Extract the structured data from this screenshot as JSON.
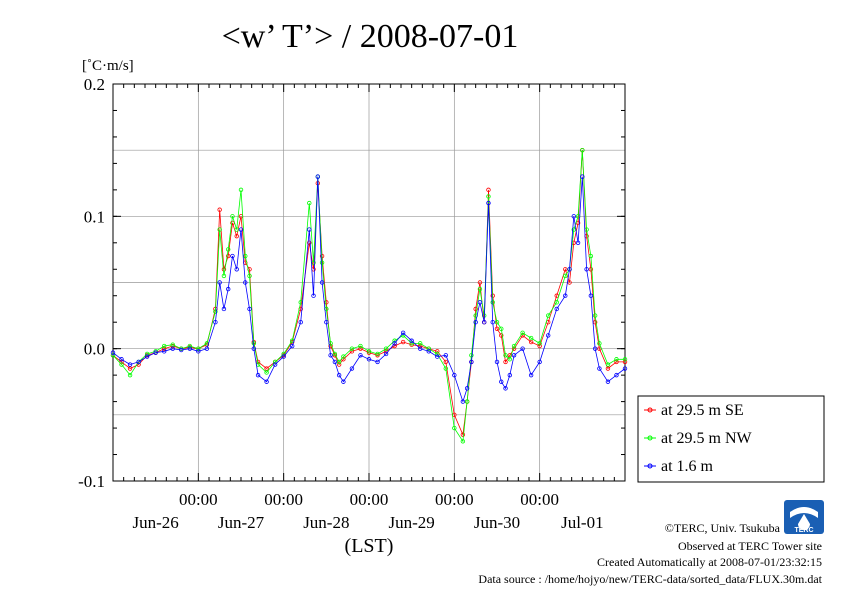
{
  "chart_data": {
    "type": "line",
    "title": "<w’ T’> / 2008-07-01",
    "ylabel": "[˚C·m/s]",
    "xlabel": "(LST)",
    "ylim": [
      -0.1,
      0.2
    ],
    "yticks": [
      -0.1,
      0.0,
      0.1,
      0.2
    ],
    "ytick_labels": [
      "-0.1",
      "0.0",
      "0.1",
      "0.2"
    ],
    "x_unit": "days since Jun-25 12:00",
    "xlim": [
      0,
      6
    ],
    "xticks": [
      0.5,
      1.5,
      2.5,
      3.5,
      4.5,
      5.5
    ],
    "xtick_time_labels": [
      "00:00",
      "00:00",
      "00:00",
      "00:00",
      "00:00"
    ],
    "xtick_time_positions": [
      1.0,
      2.0,
      3.0,
      4.0,
      5.0
    ],
    "xtick_date_labels": [
      "Jun-26",
      "Jun-27",
      "Jun-28",
      "Jun-29",
      "Jun-30",
      "Jul-01"
    ],
    "xtick_date_positions": [
      0.5,
      1.5,
      2.5,
      3.5,
      4.5,
      5.5
    ],
    "grid": true,
    "legend_position": "right",
    "series": [
      {
        "name": "at 29.5 m SE",
        "color": "#ff0000",
        "x": [
          0,
          0.1,
          0.2,
          0.3,
          0.4,
          0.5,
          0.6,
          0.7,
          0.8,
          0.9,
          1.0,
          1.1,
          1.2,
          1.25,
          1.3,
          1.35,
          1.4,
          1.45,
          1.5,
          1.55,
          1.6,
          1.65,
          1.7,
          1.8,
          1.9,
          2.0,
          2.1,
          2.2,
          2.3,
          2.35,
          2.4,
          2.45,
          2.5,
          2.55,
          2.6,
          2.65,
          2.7,
          2.8,
          2.9,
          3.0,
          3.1,
          3.2,
          3.3,
          3.4,
          3.5,
          3.6,
          3.7,
          3.8,
          3.9,
          4.0,
          4.1,
          4.15,
          4.2,
          4.25,
          4.3,
          4.35,
          4.4,
          4.45,
          4.5,
          4.55,
          4.6,
          4.65,
          4.7,
          4.8,
          4.9,
          5.0,
          5.1,
          5.2,
          5.3,
          5.35,
          5.4,
          5.45,
          5.5,
          5.55,
          5.6,
          5.65,
          5.7,
          5.8,
          5.9,
          6.0
        ],
        "y": [
          -0.005,
          -0.01,
          -0.015,
          -0.012,
          -0.005,
          -0.003,
          0.0,
          0.002,
          0.0,
          0.001,
          0.0,
          0.003,
          0.03,
          0.105,
          0.06,
          0.07,
          0.095,
          0.085,
          0.1,
          0.065,
          0.06,
          0.005,
          -0.01,
          -0.015,
          -0.01,
          -0.005,
          0.005,
          0.03,
          0.08,
          0.06,
          0.125,
          0.07,
          0.035,
          0.002,
          -0.005,
          -0.012,
          -0.008,
          -0.002,
          0.0,
          -0.003,
          -0.005,
          -0.002,
          0.002,
          0.005,
          0.003,
          0.002,
          0.0,
          -0.002,
          -0.01,
          -0.05,
          -0.065,
          -0.04,
          -0.01,
          0.03,
          0.05,
          0.02,
          0.12,
          0.04,
          0.015,
          0.01,
          -0.01,
          -0.005,
          0.0,
          0.01,
          0.005,
          0.002,
          0.02,
          0.04,
          0.06,
          0.05,
          0.08,
          0.095,
          0.15,
          0.085,
          0.06,
          0.02,
          0.0,
          -0.015,
          -0.01,
          -0.01
        ]
      },
      {
        "name": "at 29.5 m NW",
        "color": "#00ff00",
        "x": [
          0,
          0.1,
          0.2,
          0.3,
          0.4,
          0.5,
          0.6,
          0.7,
          0.8,
          0.9,
          1.0,
          1.1,
          1.2,
          1.25,
          1.3,
          1.35,
          1.4,
          1.45,
          1.5,
          1.55,
          1.6,
          1.65,
          1.7,
          1.8,
          1.9,
          2.0,
          2.1,
          2.2,
          2.3,
          2.35,
          2.4,
          2.45,
          2.5,
          2.55,
          2.6,
          2.65,
          2.7,
          2.8,
          2.9,
          3.0,
          3.1,
          3.2,
          3.3,
          3.4,
          3.5,
          3.6,
          3.7,
          3.8,
          3.9,
          4.0,
          4.1,
          4.15,
          4.2,
          4.25,
          4.3,
          4.35,
          4.4,
          4.45,
          4.5,
          4.55,
          4.6,
          4.65,
          4.7,
          4.8,
          4.9,
          5.0,
          5.1,
          5.2,
          5.3,
          5.35,
          5.4,
          5.45,
          5.5,
          5.55,
          5.6,
          5.65,
          5.7,
          5.8,
          5.9,
          6.0
        ],
        "y": [
          -0.005,
          -0.012,
          -0.02,
          -0.01,
          -0.004,
          -0.002,
          0.002,
          0.003,
          0.0,
          0.002,
          0.0,
          0.004,
          0.028,
          0.09,
          0.055,
          0.075,
          0.1,
          0.09,
          0.12,
          0.07,
          0.055,
          0.004,
          -0.012,
          -0.018,
          -0.01,
          -0.004,
          0.006,
          0.035,
          0.11,
          0.065,
          0.13,
          0.065,
          0.03,
          0.004,
          -0.004,
          -0.01,
          -0.006,
          0.0,
          0.002,
          -0.002,
          -0.004,
          0.0,
          0.006,
          0.01,
          0.004,
          0.004,
          0.0,
          -0.004,
          -0.015,
          -0.06,
          -0.07,
          -0.04,
          -0.005,
          0.025,
          0.045,
          0.025,
          0.115,
          0.035,
          0.02,
          0.015,
          -0.005,
          -0.008,
          0.002,
          0.012,
          0.008,
          0.004,
          0.025,
          0.035,
          0.055,
          0.06,
          0.09,
          0.1,
          0.15,
          0.09,
          0.07,
          0.025,
          0.004,
          -0.012,
          -0.008,
          -0.008
        ]
      },
      {
        "name": "at 1.6 m",
        "color": "#0000ff",
        "x": [
          0,
          0.1,
          0.2,
          0.3,
          0.4,
          0.5,
          0.6,
          0.7,
          0.8,
          0.9,
          1.0,
          1.1,
          1.2,
          1.25,
          1.3,
          1.35,
          1.4,
          1.45,
          1.5,
          1.55,
          1.6,
          1.65,
          1.7,
          1.8,
          1.9,
          2.0,
          2.1,
          2.2,
          2.3,
          2.35,
          2.4,
          2.45,
          2.5,
          2.55,
          2.6,
          2.65,
          2.7,
          2.8,
          2.9,
          3.0,
          3.1,
          3.2,
          3.3,
          3.4,
          3.5,
          3.6,
          3.7,
          3.8,
          3.9,
          4.0,
          4.1,
          4.15,
          4.2,
          4.25,
          4.3,
          4.35,
          4.4,
          4.45,
          4.5,
          4.55,
          4.6,
          4.65,
          4.7,
          4.8,
          4.9,
          5.0,
          5.1,
          5.2,
          5.3,
          5.35,
          5.4,
          5.45,
          5.5,
          5.55,
          5.6,
          5.65,
          5.7,
          5.8,
          5.9,
          6.0
        ],
        "y": [
          -0.003,
          -0.008,
          -0.012,
          -0.01,
          -0.006,
          -0.003,
          -0.002,
          0.0,
          -0.001,
          0.0,
          -0.002,
          0.0,
          0.02,
          0.05,
          0.03,
          0.045,
          0.07,
          0.06,
          0.09,
          0.05,
          0.03,
          0.0,
          -0.02,
          -0.025,
          -0.012,
          -0.006,
          0.002,
          0.02,
          0.09,
          0.04,
          0.13,
          0.05,
          0.02,
          -0.005,
          -0.01,
          -0.02,
          -0.025,
          -0.015,
          -0.005,
          -0.008,
          -0.01,
          -0.004,
          0.004,
          0.012,
          0.006,
          0.0,
          -0.002,
          -0.006,
          -0.005,
          -0.02,
          -0.04,
          -0.03,
          -0.01,
          0.02,
          0.035,
          0.02,
          0.11,
          0.02,
          -0.01,
          -0.025,
          -0.03,
          -0.02,
          -0.005,
          0.0,
          -0.02,
          -0.01,
          0.01,
          0.03,
          0.04,
          0.06,
          0.1,
          0.08,
          0.13,
          0.06,
          0.04,
          0.0,
          -0.015,
          -0.025,
          -0.02,
          -0.015
        ]
      }
    ]
  },
  "footer": {
    "copyright": "©TERC, Univ. Tsukuba",
    "observed": "Observed at TERC Tower site",
    "created": "Created Automatically at 2008-07-01/23:32:15",
    "source": "Data source : /home/hojyo/new/TERC-data/sorted_data/FLUX.30m.dat"
  },
  "logo": {
    "text": "TERC",
    "icon": "terc-logo-icon",
    "color": "#1a5fb4"
  }
}
